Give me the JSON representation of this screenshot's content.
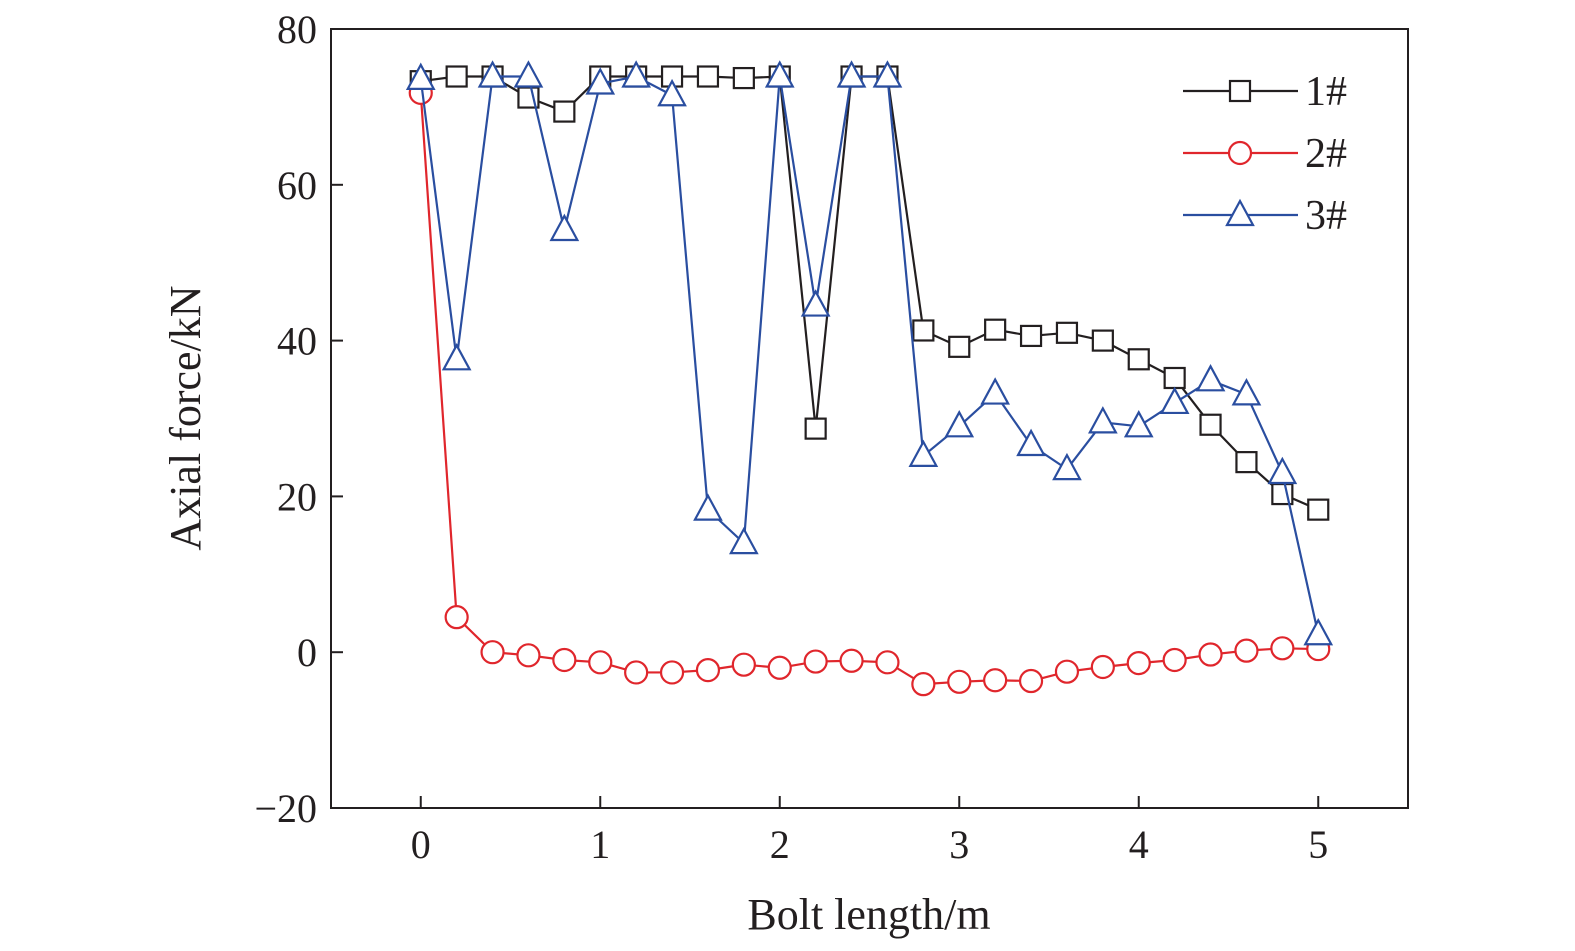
{
  "chart_data": {
    "type": "line",
    "xlabel": "Bolt length/m",
    "ylabel": "Axial force/kN",
    "xlim": [
      -0.5,
      5.5
    ],
    "ylim": [
      -20,
      80
    ],
    "xticks": [
      0,
      1,
      2,
      3,
      4,
      5
    ],
    "yticks": [
      -20,
      0,
      20,
      40,
      60,
      80
    ],
    "xtick_labels": [
      "0",
      "1",
      "2",
      "3",
      "4",
      "5"
    ],
    "ytick_labels": [
      "−20",
      "0",
      "20",
      "40",
      "60",
      "80"
    ],
    "grid": false,
    "legend_position": "top-right",
    "series": [
      {
        "name": "1#",
        "color": "#231f20",
        "marker": "square",
        "x": [
          0,
          0.2,
          0.4,
          0.6,
          0.8,
          1.0,
          1.2,
          1.4,
          1.6,
          1.8,
          2.0,
          2.2,
          2.4,
          2.6,
          2.8,
          3.0,
          3.2,
          3.4,
          3.6,
          3.8,
          4.0,
          4.2,
          4.4,
          4.6,
          4.8,
          5.0
        ],
        "y": [
          73.3,
          73.9,
          73.9,
          71.2,
          69.4,
          73.9,
          73.9,
          73.9,
          73.9,
          73.7,
          73.9,
          28.7,
          73.9,
          73.9,
          41.3,
          39.2,
          41.4,
          40.6,
          41.0,
          40.0,
          37.6,
          35.2,
          29.2,
          24.4,
          20.3,
          18.3
        ]
      },
      {
        "name": "2#",
        "color": "#e0262c",
        "marker": "circle",
        "x": [
          0,
          0.2,
          0.4,
          0.6,
          0.8,
          1.0,
          1.2,
          1.4,
          1.6,
          1.8,
          2.0,
          2.2,
          2.4,
          2.6,
          2.8,
          3.0,
          3.2,
          3.4,
          3.6,
          3.8,
          4.0,
          4.2,
          4.4,
          4.6,
          4.8,
          5.0
        ],
        "y": [
          71.8,
          4.5,
          0.0,
          -0.4,
          -1.0,
          -1.3,
          -2.6,
          -2.6,
          -2.3,
          -1.6,
          -2.0,
          -1.2,
          -1.1,
          -1.3,
          -4.1,
          -3.8,
          -3.6,
          -3.7,
          -2.5,
          -1.9,
          -1.4,
          -1.0,
          -0.3,
          0.2,
          0.5,
          0.4
        ]
      },
      {
        "name": "3#",
        "color": "#2a4ea0",
        "marker": "triangle",
        "x": [
          0,
          0.2,
          0.4,
          0.6,
          0.8,
          1.0,
          1.2,
          1.4,
          1.6,
          1.8,
          2.0,
          2.2,
          2.4,
          2.6,
          2.8,
          3.0,
          3.2,
          3.4,
          3.6,
          3.8,
          4.0,
          4.2,
          4.4,
          4.6,
          4.8,
          5.0
        ],
        "y": [
          73.6,
          37.6,
          73.9,
          73.9,
          54.2,
          73.0,
          73.9,
          71.5,
          18.3,
          14.0,
          73.9,
          44.5,
          73.9,
          73.9,
          25.2,
          29.0,
          33.2,
          26.6,
          23.5,
          29.5,
          29.0,
          32.0,
          34.9,
          33.1,
          23.0,
          2.3
        ]
      }
    ]
  }
}
